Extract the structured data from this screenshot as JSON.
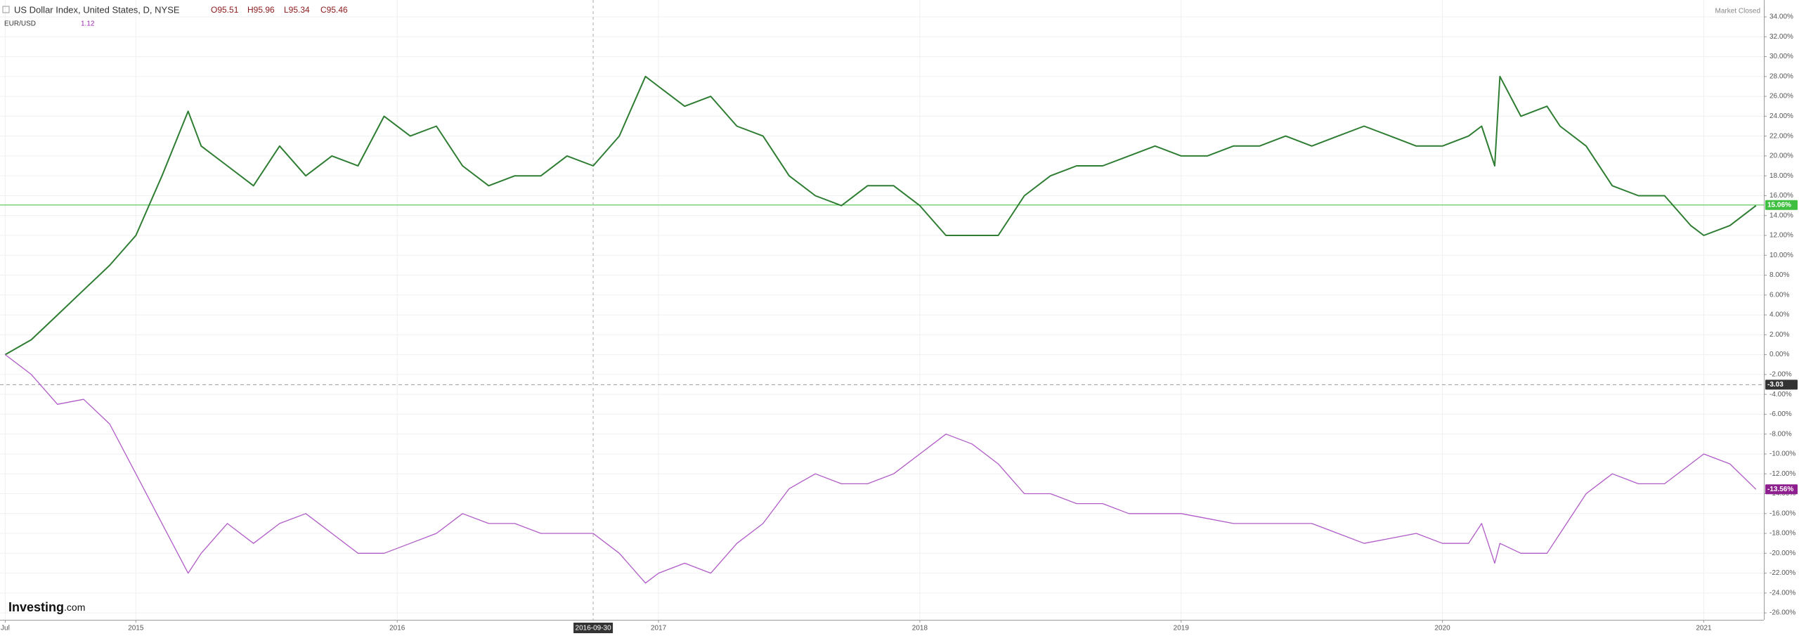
{
  "chart_data": {
    "type": "line",
    "title": "US Dollar Index, United States, D, NYSE",
    "ohlc": [
      "O95.51",
      "H95.96",
      "L95.34",
      "C95.46"
    ],
    "status": "Market Closed",
    "brand": [
      "Investing",
      ".com"
    ],
    "x": [
      2014.5,
      2014.6,
      2014.7,
      2014.8,
      2014.9,
      2015.0,
      2015.1,
      2015.2,
      2015.25,
      2015.35,
      2015.45,
      2015.55,
      2015.65,
      2015.75,
      2015.85,
      2015.95,
      2016.05,
      2016.15,
      2016.25,
      2016.35,
      2016.45,
      2016.55,
      2016.65,
      2016.75,
      2016.85,
      2016.95,
      2017.0,
      2017.1,
      2017.2,
      2017.3,
      2017.4,
      2017.5,
      2017.6,
      2017.7,
      2017.8,
      2017.9,
      2018.0,
      2018.1,
      2018.2,
      2018.3,
      2018.4,
      2018.5,
      2018.6,
      2018.7,
      2018.8,
      2018.9,
      2019.0,
      2019.1,
      2019.2,
      2019.3,
      2019.4,
      2019.5,
      2019.6,
      2019.7,
      2019.8,
      2019.9,
      2020.0,
      2020.1,
      2020.15,
      2020.2,
      2020.22,
      2020.3,
      2020.4,
      2020.45,
      2020.55,
      2020.65,
      2020.75,
      2020.85,
      2020.95,
      2021.0,
      2021.1,
      2021.2
    ],
    "series": [
      {
        "name": "US Dollar Index, United States, D, NYSE",
        "color": "#2e7d32",
        "values": [
          0,
          1.5,
          4,
          6.5,
          9,
          12,
          18,
          24.5,
          21,
          19,
          17,
          21,
          18,
          20,
          19,
          24,
          22,
          23,
          19,
          17,
          18,
          18,
          20,
          19,
          22,
          28,
          27,
          25,
          26,
          23,
          22,
          18,
          16,
          15,
          17,
          17,
          15,
          12,
          12,
          12,
          16,
          18,
          19,
          19,
          20,
          21,
          20,
          20,
          21,
          21,
          22,
          21,
          22,
          23,
          22,
          21,
          21,
          22,
          23,
          19,
          28,
          24,
          25,
          23,
          21,
          17,
          16,
          16,
          13,
          12,
          13,
          15
        ]
      },
      {
        "name": "EUR/USD",
        "value_label": "1.12",
        "color": "#b05cc6",
        "values": [
          0,
          -2,
          -5,
          -4.5,
          -7,
          -12,
          -17,
          -22,
          -20,
          -17,
          -19,
          -17,
          -16,
          -18,
          -20,
          -20,
          -19,
          -18,
          -16,
          -17,
          -17,
          -18,
          -18,
          -18,
          -20,
          -23,
          -22,
          -21,
          -22,
          -19,
          -17,
          -13.5,
          -12,
          -13,
          -13,
          -12,
          -10,
          -8,
          -9,
          -11,
          -14,
          -14,
          -15,
          -15,
          -16,
          -16,
          -16,
          -16.5,
          -17,
          -17,
          -17,
          -17,
          -18,
          -19,
          -18.5,
          -18,
          -19,
          -19,
          -17,
          -21,
          -19,
          -20,
          -20,
          -18,
          -14,
          -12,
          -13,
          -13,
          -11,
          -10,
          -11,
          -13.56
        ]
      }
    ],
    "price_lines": [
      {
        "value": 15.06,
        "label": "15.06%",
        "color": "#3fbf3f"
      },
      {
        "value": -13.56,
        "label": "-13.56%",
        "color": "#8e1f8e"
      }
    ],
    "crosshair": {
      "y": {
        "value": -3.03,
        "label": "-3.03"
      },
      "x": {
        "value": 2016.75,
        "label": "2016-09-30"
      }
    },
    "xlim": [
      2014.48,
      2021.23
    ],
    "xticks": [
      {
        "value": 2014.5,
        "label": "Jul"
      },
      2015,
      2016,
      2017,
      2018,
      2019,
      2020,
      2021
    ],
    "ylim": [
      -26.7,
      35.7
    ],
    "yticks": [
      {
        "value": 34,
        "label": "34.00%"
      },
      {
        "value": 32,
        "label": "32.00%"
      },
      {
        "value": 30,
        "label": "30.00%"
      },
      {
        "value": 28,
        "label": "28.00%"
      },
      {
        "value": 26,
        "label": "26.00%"
      },
      {
        "value": 24,
        "label": "24.00%"
      },
      {
        "value": 22,
        "label": "22.00%"
      },
      {
        "value": 20,
        "label": "20.00%"
      },
      {
        "value": 18,
        "label": "18.00%"
      },
      {
        "value": 16,
        "label": "16.00%"
      },
      {
        "value": 14,
        "label": "14.00%"
      },
      {
        "value": 12,
        "label": "12.00%"
      },
      {
        "value": 10,
        "label": "10.00%"
      },
      {
        "value": 8,
        "label": "8.00%"
      },
      {
        "value": 6,
        "label": "6.00%"
      },
      {
        "value": 4,
        "label": "4.00%"
      },
      {
        "value": 2,
        "label": "2.00%"
      },
      {
        "value": 0,
        "label": "0.00%"
      },
      {
        "value": -2,
        "label": "-2.00%"
      },
      {
        "value": -4,
        "label": "-4.00%"
      },
      {
        "value": -6,
        "label": "-6.00%"
      },
      {
        "value": -8,
        "label": "-8.00%"
      },
      {
        "value": -10,
        "label": "-10.00%"
      },
      {
        "value": -12,
        "label": "-12.00%"
      },
      {
        "value": -14,
        "label": "-14.00%"
      },
      {
        "value": -16,
        "label": "-16.00%"
      },
      {
        "value": -18,
        "label": "-18.00%"
      },
      {
        "value": -20,
        "label": "-20.00%"
      },
      {
        "value": -22,
        "label": "-22.00%"
      },
      {
        "value": -24,
        "label": "-24.00%"
      },
      {
        "value": -26,
        "label": "-26.00%"
      }
    ],
    "grid": true
  }
}
